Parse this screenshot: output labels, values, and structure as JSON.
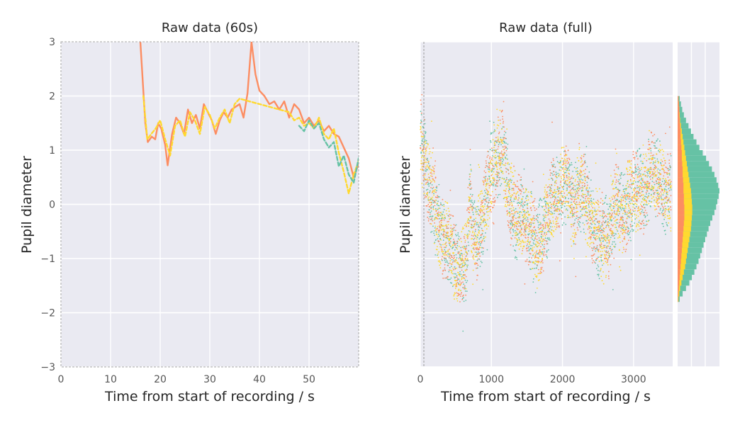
{
  "colors": {
    "green": "#66c2a5",
    "orange": "#fc8d62",
    "yellow": "#ffd92f",
    "panel_bg": "#eaeaf2",
    "grid": "#ffffff"
  },
  "chart_data": [
    {
      "type": "line",
      "title": "Raw data (60s)",
      "xlabel": "Time from start of recording / s",
      "ylabel": "Pupil diameter",
      "xlim": [
        0,
        60
      ],
      "ylim": [
        -3,
        3
      ],
      "xticks": [
        "0",
        "10",
        "20",
        "30",
        "40",
        "50"
      ],
      "yticks": [
        "−3",
        "−2",
        "−1",
        "0",
        "1",
        "2",
        "3"
      ],
      "grid": true,
      "series": [
        {
          "color": "#fc8d62",
          "x": [
            16.0,
            17.0,
            17.5,
            18.3,
            19.0,
            19.6,
            20.2,
            21.0,
            21.5,
            22.4,
            23.2,
            24.0,
            24.8,
            25.6,
            26.4,
            27.2,
            28.0,
            28.8,
            29.6,
            30.4,
            31.2,
            32.0,
            32.8,
            33.6,
            34.4,
            35.2,
            36.0,
            36.8,
            37.6,
            38.4,
            39.2,
            40.0,
            41.0,
            42.0,
            43.0,
            44.0,
            45.0,
            46.0,
            47.0,
            48.0,
            49.0,
            50.0,
            51.0,
            52.0,
            53.0,
            54.0,
            55.0,
            56.0,
            57.0,
            58.0,
            59.0,
            60.0
          ],
          "y": [
            3.0,
            1.5,
            1.15,
            1.25,
            1.2,
            1.5,
            1.4,
            1.1,
            0.72,
            1.3,
            1.6,
            1.5,
            1.3,
            1.75,
            1.5,
            1.65,
            1.4,
            1.85,
            1.7,
            1.55,
            1.3,
            1.55,
            1.7,
            1.6,
            1.75,
            1.8,
            1.85,
            1.6,
            2.05,
            3.0,
            2.4,
            2.1,
            2.0,
            1.85,
            1.9,
            1.75,
            1.9,
            1.6,
            1.85,
            1.75,
            1.5,
            1.6,
            1.45,
            1.55,
            1.35,
            1.45,
            1.3,
            1.25,
            1.05,
            0.85,
            0.5,
            0.75
          ]
        },
        {
          "color": "#ffd92f",
          "x": [
            16.6,
            17.4,
            18.2,
            19.1,
            20.0,
            21.0,
            22.0,
            23.0,
            24.0,
            25.0,
            26.0,
            27.0,
            28.0,
            29.0,
            30.0,
            31.0,
            32.0,
            33.0,
            34.0,
            35.0,
            36.0,
            46.0,
            47.0,
            48.0,
            49.0,
            50.0,
            51.0,
            52.0,
            53.0,
            54.0,
            55.0,
            56.0,
            57.0,
            58.0,
            59.0,
            60.0
          ],
          "y": [
            2.0,
            1.2,
            1.3,
            1.4,
            1.55,
            1.2,
            0.9,
            1.45,
            1.55,
            1.25,
            1.7,
            1.55,
            1.3,
            1.8,
            1.65,
            1.4,
            1.6,
            1.75,
            1.5,
            1.85,
            1.95,
            1.7,
            1.55,
            1.6,
            1.45,
            1.5,
            1.4,
            1.6,
            1.3,
            1.2,
            1.4,
            0.95,
            0.6,
            0.2,
            0.55,
            0.8
          ]
        },
        {
          "color": "#66c2a5",
          "x": [
            48.0,
            49.0,
            50.0,
            51.0,
            52.0,
            53.0,
            54.0,
            55.0,
            56.0,
            57.0,
            58.0,
            59.0,
            60.0
          ],
          "y": [
            1.45,
            1.35,
            1.55,
            1.4,
            1.5,
            1.2,
            1.05,
            1.15,
            0.7,
            0.9,
            0.55,
            0.4,
            0.85
          ]
        }
      ]
    },
    {
      "type": "scatter",
      "title": "Raw data (full)",
      "xlabel": "Time from start of recording / s",
      "ylabel": "Pupil diameter",
      "xlim": [
        0,
        3550
      ],
      "ylim": [
        -3,
        3
      ],
      "xticks": [
        "0",
        "1000",
        "2000",
        "3000"
      ],
      "grid": true,
      "trend": {
        "x": [
          0,
          50,
          150,
          250,
          350,
          450,
          550,
          650,
          700,
          750,
          850,
          950,
          1050,
          1150,
          1250,
          1350,
          1450,
          1550,
          1650,
          1750,
          1850,
          1950,
          2050,
          2150,
          2250,
          2350,
          2450,
          2550,
          2650,
          2750,
          2850,
          2950,
          3050,
          3150,
          3250,
          3350,
          3450,
          3550
        ],
        "y": [
          1.3,
          0.9,
          0.2,
          -0.3,
          -0.7,
          -0.9,
          -1.2,
          -1.0,
          0.3,
          -0.7,
          -0.5,
          0.3,
          0.8,
          1.0,
          0.2,
          -0.3,
          -0.1,
          -0.5,
          -0.8,
          -0.4,
          0.1,
          0.2,
          0.4,
          -0.1,
          0.3,
          0.0,
          -0.4,
          -0.7,
          -0.6,
          0.0,
          -0.2,
          0.1,
          0.3,
          0.2,
          0.6,
          0.5,
          0.2,
          0.3
        ]
      },
      "series": [
        {
          "color": "#66c2a5"
        },
        {
          "color": "#fc8d62"
        },
        {
          "color": "#ffd92f"
        }
      ]
    },
    {
      "type": "histogram",
      "orientation": "horizontal",
      "ylim": [
        -3,
        3
      ],
      "bins_from": -1.8,
      "bin_width": 0.1,
      "series": [
        {
          "color": "#66c2a5",
          "counts": [
            0.05,
            0.12,
            0.2,
            0.28,
            0.34,
            0.4,
            0.45,
            0.5,
            0.54,
            0.58,
            0.62,
            0.66,
            0.7,
            0.74,
            0.78,
            0.83,
            0.88,
            0.92,
            0.95,
            0.98,
            1.0,
            0.97,
            0.93,
            0.88,
            0.82,
            0.75,
            0.68,
            0.6,
            0.52,
            0.45,
            0.38,
            0.32,
            0.26,
            0.2,
            0.15,
            0.11,
            0.08,
            0.05
          ]
        },
        {
          "color": "#ffd92f",
          "counts": [
            0.02,
            0.04,
            0.06,
            0.09,
            0.12,
            0.15,
            0.18,
            0.2,
            0.22,
            0.24,
            0.26,
            0.28,
            0.3,
            0.32,
            0.33,
            0.34,
            0.35,
            0.35,
            0.34,
            0.33,
            0.32,
            0.3,
            0.28,
            0.26,
            0.24,
            0.22,
            0.2,
            0.18,
            0.16,
            0.14,
            0.12,
            0.1,
            0.08,
            0.06,
            0.05,
            0.04,
            0.03,
            0.02
          ]
        },
        {
          "color": "#fc8d62",
          "counts": [
            0.01,
            0.02,
            0.03,
            0.04,
            0.05,
            0.06,
            0.07,
            0.08,
            0.09,
            0.1,
            0.11,
            0.12,
            0.13,
            0.14,
            0.15,
            0.16,
            0.16,
            0.16,
            0.15,
            0.15,
            0.14,
            0.14,
            0.13,
            0.12,
            0.12,
            0.11,
            0.1,
            0.1,
            0.09,
            0.08,
            0.07,
            0.07,
            0.06,
            0.05,
            0.04,
            0.04,
            0.03,
            0.02
          ]
        }
      ]
    }
  ]
}
